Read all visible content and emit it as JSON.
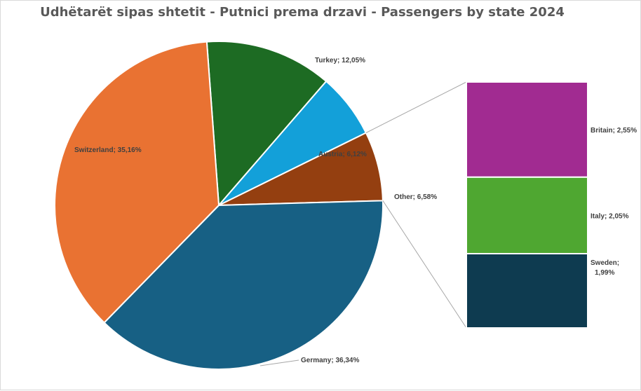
{
  "chart_data": {
    "type": "pie",
    "subtype": "bar-of-pie",
    "title": "Udhëtarët sipas shtetit - Putnici prema drzavi - Passengers by state 2024",
    "unit": "%",
    "main_slices": [
      {
        "name": "Turkey",
        "value": 12.05,
        "label": "Turkey; 12,05%",
        "color": "#1d6b23"
      },
      {
        "name": "Austria",
        "value": 6.12,
        "label": "Austria; 6,12%",
        "color": "#13a0d9"
      },
      {
        "name": "Other",
        "value": 6.58,
        "label": "Other; 6,58%",
        "color": "#943f10"
      },
      {
        "name": "Germany",
        "value": 36.34,
        "label": "Germany; 36,34%",
        "color": "#176084"
      },
      {
        "name": "Switzerland",
        "value": 35.16,
        "label": "Switzerland; 35,16%",
        "color": "#e97232"
      }
    ],
    "secondary_bar": [
      {
        "name": "Britain",
        "value": 2.55,
        "label": "Britain; 2,55%",
        "color": "#a12b91"
      },
      {
        "name": "Italy",
        "value": 2.05,
        "label": "Italy; 2,05%",
        "color": "#4fa731"
      },
      {
        "name": "Sweden",
        "value": 1.99,
        "label_lines": [
          "Sweden;",
          "1,99%"
        ],
        "color": "#0e3b50"
      }
    ]
  }
}
